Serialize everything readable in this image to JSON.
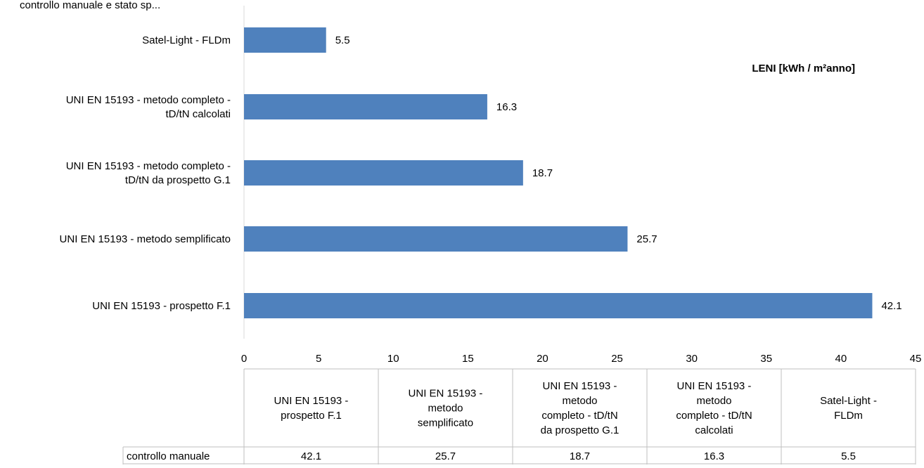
{
  "chart_data": {
    "type": "bar",
    "orientation": "horizontal",
    "title": "",
    "top_label_partial": "controllo manuale e stato sp...",
    "series_label": "LENI [kWh / m²anno]",
    "categories": [
      "Satel-Light - FLDm",
      "UNI EN 15193 - metodo completo - tD/tN calcolati",
      "UNI EN 15193 - metodo completo - tD/tN da prospetto G.1",
      "UNI EN 15193 - metodo semplificato",
      "UNI EN 15193 - prospetto F.1"
    ],
    "category_lines": [
      [
        "Satel-Light - FLDm"
      ],
      [
        "UNI EN 15193 - metodo completo -",
        "tD/tN calcolati"
      ],
      [
        "UNI EN 15193 - metodo completo -",
        "tD/tN da prospetto G.1"
      ],
      [
        "UNI EN 15193 - metodo semplificato"
      ],
      [
        "UNI EN 15193 - prospetto F.1"
      ]
    ],
    "series": [
      {
        "name": "controllo manuale",
        "values": [
          5.5,
          16.3,
          18.7,
          25.7,
          42.1
        ]
      }
    ],
    "data_labels": [
      "5.5",
      "16.3",
      "18.7",
      "25.7",
      "42.1"
    ],
    "xlim": [
      0,
      45
    ],
    "x_ticks": [
      0,
      5,
      10,
      15,
      20,
      25,
      30,
      35,
      40,
      45
    ],
    "grid": false,
    "legend": "data-table",
    "bar_color": "#4f81bd",
    "data_table": {
      "headers": [
        [
          "UNI EN 15193 -",
          "prospetto F.1"
        ],
        [
          "UNI EN 15193 -",
          "metodo",
          "semplificato"
        ],
        [
          "UNI EN 15193 -",
          "metodo",
          "completo - tD/tN",
          "da prospetto G.1"
        ],
        [
          "UNI EN 15193 -",
          "metodo",
          "completo - tD/tN",
          "calcolati"
        ],
        [
          "Satel-Light -",
          "FLDm"
        ]
      ],
      "row_label": "controllo manuale",
      "row_values": [
        "42.1",
        "25.7",
        "18.7",
        "16.3",
        "5.5"
      ]
    }
  }
}
